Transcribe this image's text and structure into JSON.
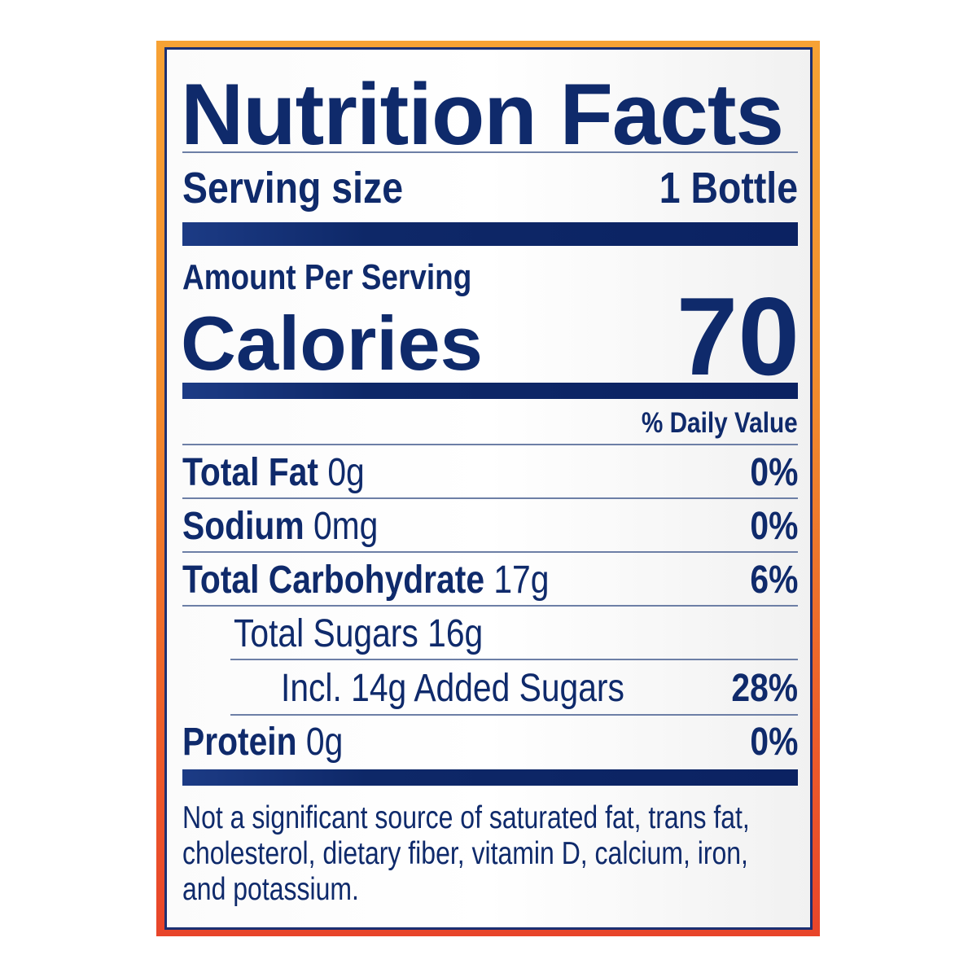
{
  "title": "Nutrition Facts",
  "serving": {
    "label": "Serving size",
    "value": "1 Bottle"
  },
  "amount_per_serving": "Amount Per Serving",
  "calories": {
    "label": "Calories",
    "value": "70"
  },
  "daily_value_header": "% Daily Value",
  "nutrients": [
    {
      "name": "Total Fat",
      "amount": "0g",
      "dv": "0%"
    },
    {
      "name": "Sodium",
      "amount": "0mg",
      "dv": "0%"
    },
    {
      "name": "Total Carbohydrate",
      "amount": "17g",
      "dv": "6%"
    },
    {
      "name": "Total Sugars 16g",
      "amount": "",
      "dv": ""
    },
    {
      "name": "Incl. 14g Added Sugars",
      "amount": "",
      "dv": "28%"
    },
    {
      "name": "Protein",
      "amount": "0g",
      "dv": "0%"
    }
  ],
  "footnote": [
    "Not a significant source of saturated fat, trans fat,",
    "cholesterol, dietary fiber, vitamin D, calcium, iron,",
    "and potassium."
  ],
  "colors": {
    "text": "#0f2a6b",
    "border": "#1b2f72",
    "background_top": "#f7a234",
    "background_bottom": "#e8452a"
  }
}
